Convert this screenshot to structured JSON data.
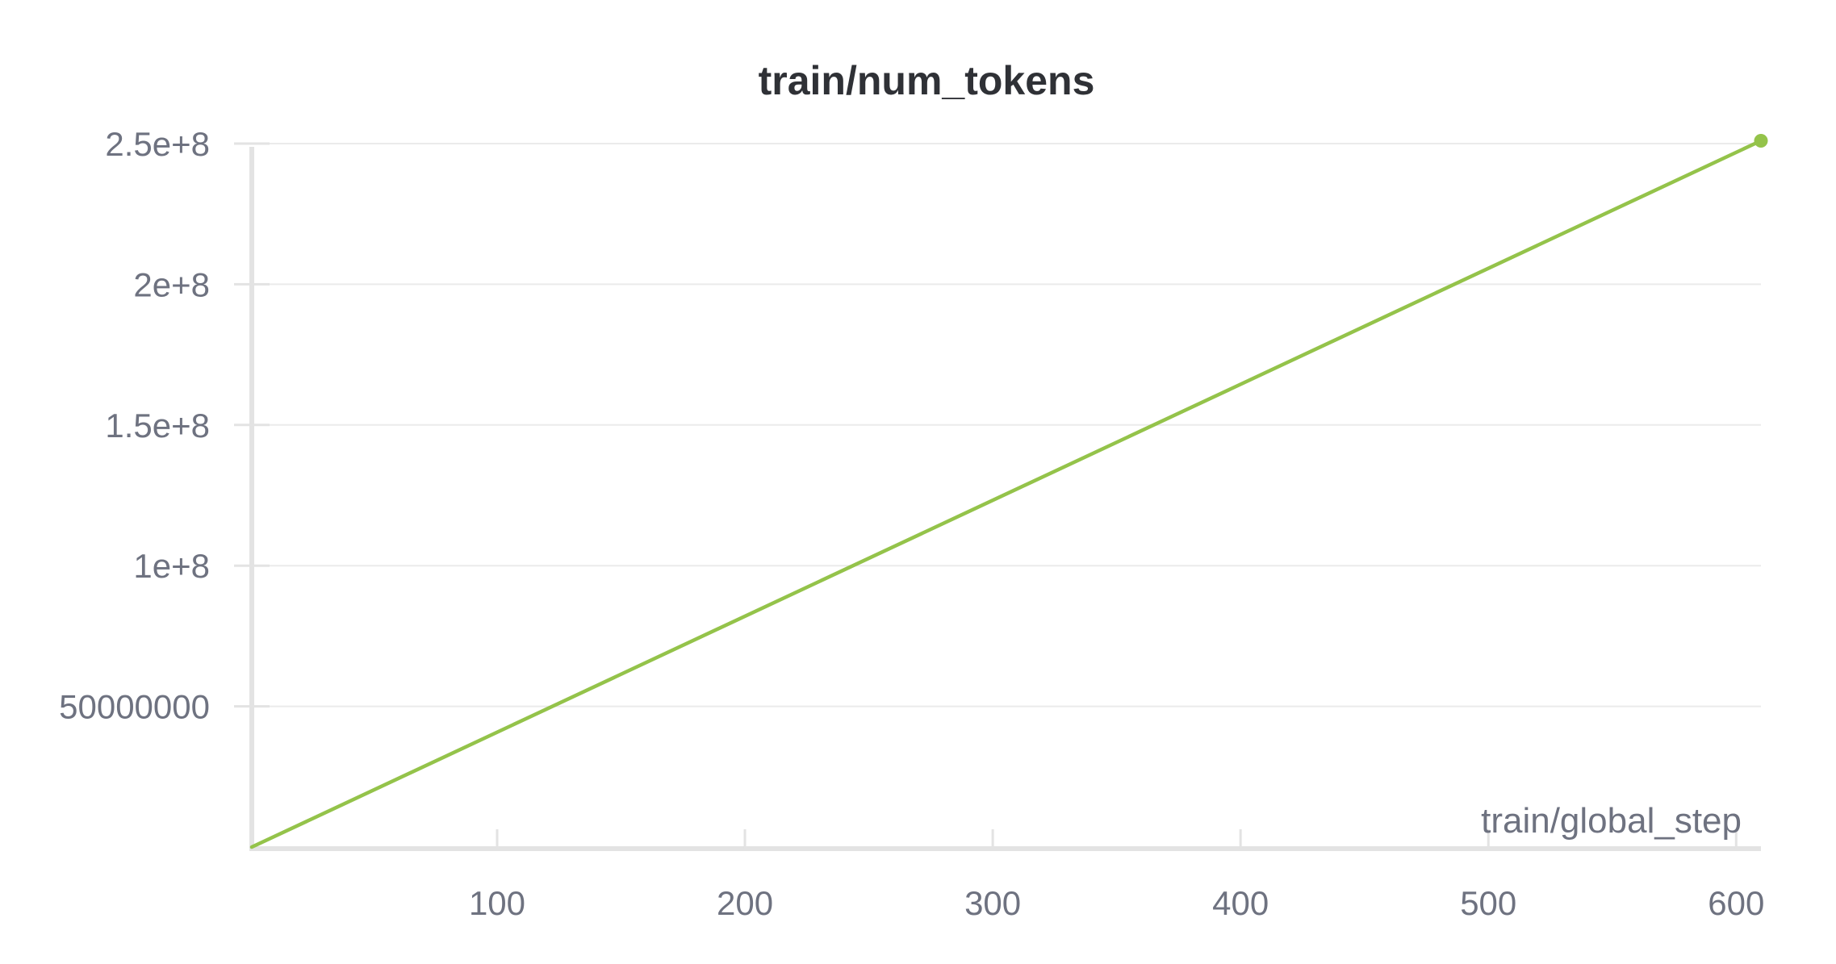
{
  "chart_data": {
    "type": "line",
    "title": "train/num_tokens",
    "xlabel": "train/global_step",
    "ylabel": "",
    "xlim": [
      1,
      610
    ],
    "ylim": [
      0,
      250000000
    ],
    "x_ticks": [
      100,
      200,
      300,
      400,
      500,
      600
    ],
    "x_tick_labels": [
      "100",
      "200",
      "300",
      "400",
      "500",
      "600"
    ],
    "y_ticks": [
      50000000,
      100000000,
      150000000,
      200000000,
      250000000
    ],
    "y_tick_labels": [
      "50000000",
      "1e+8",
      "1.5e+8",
      "2e+8",
      "2.5e+8"
    ],
    "grid": true,
    "series": [
      {
        "color": "#94c34a",
        "x": [
          1,
          610
        ],
        "values": [
          0,
          251000000
        ],
        "end_marker": true
      }
    ]
  }
}
